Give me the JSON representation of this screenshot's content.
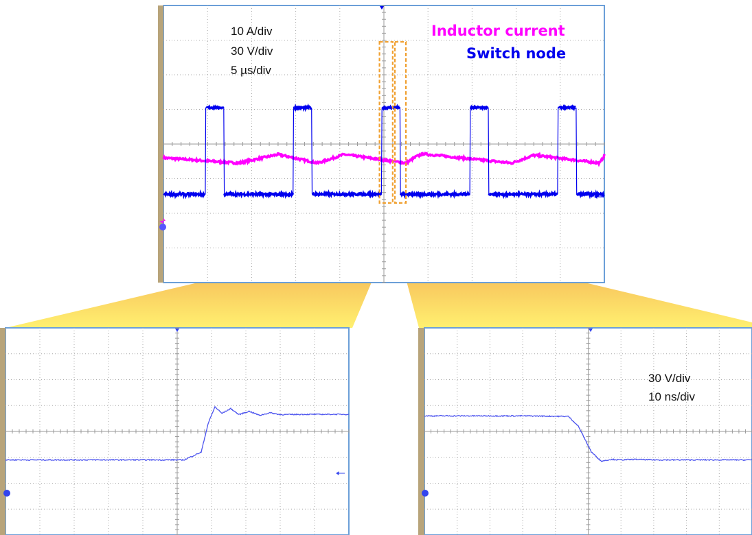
{
  "chart_data": [
    {
      "type": "line",
      "panel": "overview",
      "annotations": [
        "10 A/div",
        "30 V/div",
        "5 µs/div"
      ],
      "series": [
        {
          "name": "Inductor current",
          "color": "#ff00ff",
          "unit": "div",
          "x": [
            0,
            1.7,
            2.6,
            3.5,
            4.1,
            5.5,
            5.75,
            5.9,
            6.0,
            7.9,
            8.4,
            9.9,
            10.0
          ],
          "y": [
            -0.4,
            -0.55,
            -0.3,
            -0.55,
            -0.3,
            -0.55,
            -0.35,
            -0.28,
            -0.3,
            -0.55,
            -0.32,
            -0.55,
            -0.32
          ]
        },
        {
          "name": "Switch node",
          "color": "#0000ee",
          "unit": "div",
          "pulses_start_div": [
            0.95,
            2.95,
            4.95,
            6.95,
            8.95
          ],
          "pulse_width_div": 0.42,
          "high_div": 1.05,
          "low_div": -1.45
        }
      ],
      "highlight_regions_div": [
        [
          4.9,
          5.2
        ],
        [
          5.25,
          5.5
        ]
      ],
      "grid": true
    },
    {
      "type": "line",
      "panel": "rising-edge-zoom",
      "series": [
        {
          "color": "#4a52ee",
          "unit": "div",
          "x": [
            0,
            1.5,
            2.6,
            2.85,
            2.95,
            3.05,
            3.15,
            3.28,
            3.4,
            3.55,
            3.7,
            3.85,
            4.0,
            4.4,
            5.0
          ],
          "y": [
            -1.1,
            -1.1,
            -1.1,
            -0.8,
            0.3,
            0.95,
            0.7,
            0.88,
            0.65,
            0.78,
            0.62,
            0.72,
            0.65,
            0.66,
            0.66
          ]
        }
      ],
      "grid": true
    },
    {
      "type": "line",
      "panel": "falling-edge-zoom",
      "annotations": [
        "30 V/div",
        "10 ns/div"
      ],
      "series": [
        {
          "color": "#4a52ee",
          "unit": "div",
          "x": [
            0,
            1.5,
            2.2,
            2.35,
            2.55,
            2.7,
            2.85,
            3.0,
            3.2,
            3.5,
            5.0
          ],
          "y": [
            0.6,
            0.6,
            0.58,
            0.2,
            -0.8,
            -1.15,
            -1.08,
            -1.1,
            -1.08,
            -1.1,
            -1.1
          ]
        }
      ],
      "grid": true
    }
  ],
  "legend": {
    "inductor_label": "Inductor current",
    "switch_label": "Switch node"
  },
  "colors": {
    "screen_border": "#6b9fd8",
    "left_bar": "#b8a47a",
    "highlight_box": "#f0a030",
    "funnel_top": "#f2a24e",
    "funnel_bottom": "#fff070"
  }
}
